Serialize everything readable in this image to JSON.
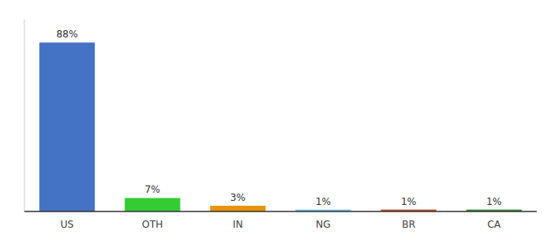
{
  "chart_data": {
    "type": "bar",
    "categories": [
      "US",
      "OTH",
      "IN",
      "NG",
      "BR",
      "CA"
    ],
    "values": [
      88,
      7,
      3,
      1,
      1,
      1
    ],
    "value_labels": [
      "88%",
      "7%",
      "3%",
      "1%",
      "1%",
      "1%"
    ],
    "colors": [
      "#4472c4",
      "#33cc33",
      "#e6940a",
      "#74c6e8",
      "#c0522a",
      "#3a8a3a"
    ],
    "ylim": [
      0,
      100
    ],
    "data_labels": true,
    "tick_labels": "x"
  }
}
